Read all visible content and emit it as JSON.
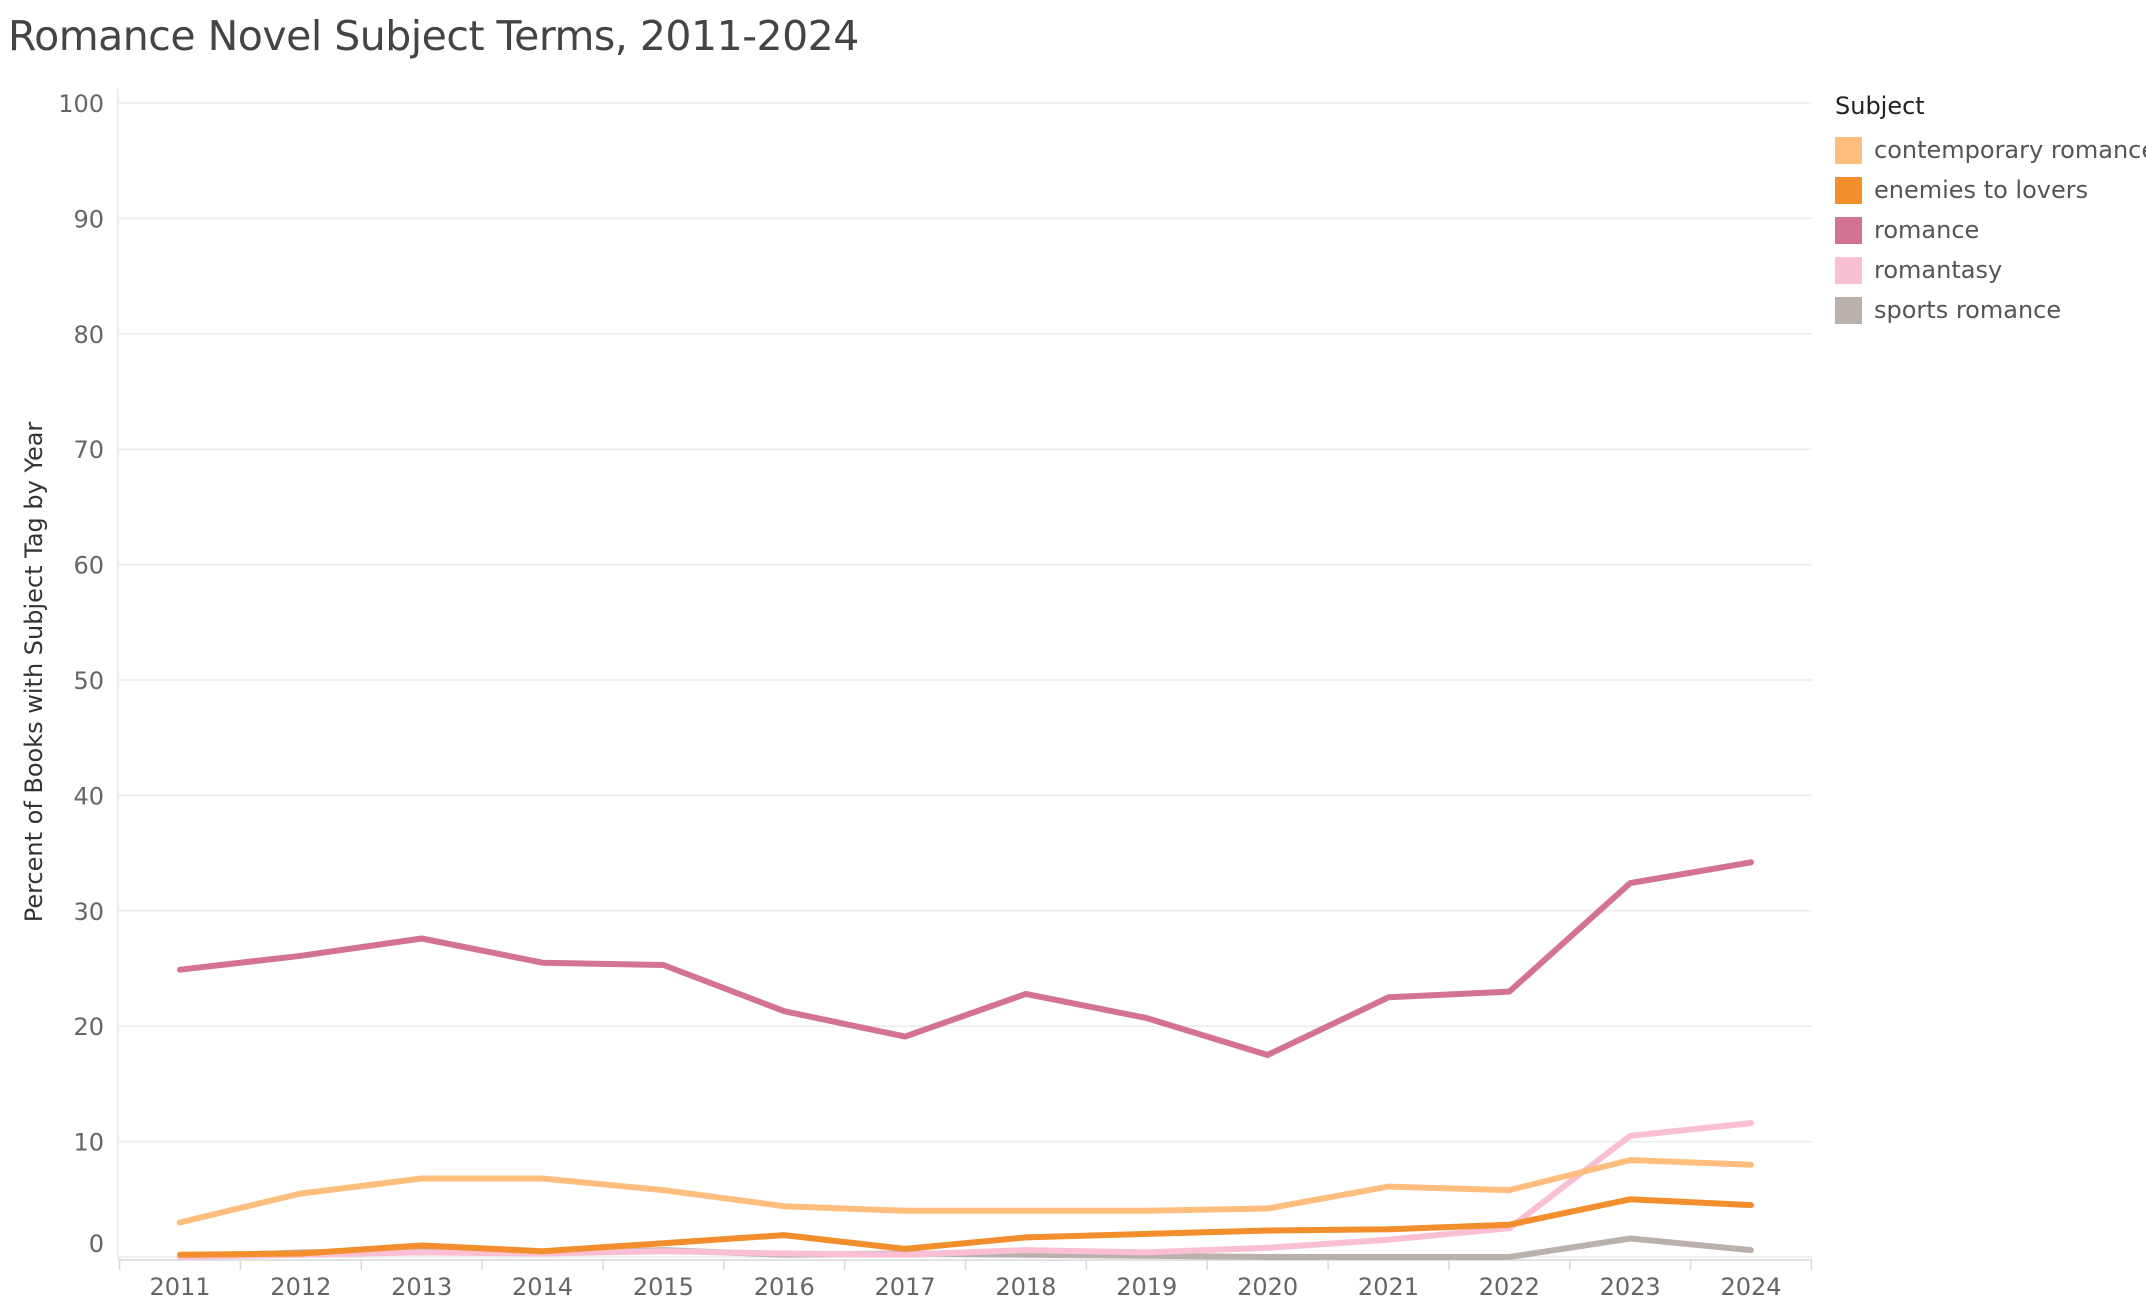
{
  "chart_data": {
    "type": "line",
    "title": "Romance Novel Subject Terms, 2011-2024",
    "ylabel": "Percent of Books with Subject Tag by Year",
    "xlabel": "",
    "x": [
      "2011",
      "2012",
      "2013",
      "2014",
      "2015",
      "2016",
      "2017",
      "2018",
      "2019",
      "2020",
      "2021",
      "2022",
      "2023",
      "2024"
    ],
    "ylim": [
      0,
      100
    ],
    "yticks": [
      0,
      10,
      20,
      30,
      40,
      50,
      60,
      70,
      80,
      90,
      100
    ],
    "grid": "horizontal",
    "legend_title": "Subject",
    "legend_position": "right",
    "series": [
      {
        "name": "contemporary romance",
        "color": "#FFBE7D",
        "values": [
          3.0,
          5.5,
          6.8,
          6.8,
          5.8,
          4.4,
          4.0,
          4.0,
          4.0,
          4.2,
          6.1,
          5.8,
          8.4,
          8.0
        ]
      },
      {
        "name": "enemies to lovers",
        "color": "#F28E2B",
        "values": [
          0.2,
          0.3,
          1.0,
          0.5,
          1.2,
          1.9,
          0.7,
          1.7,
          2.0,
          2.3,
          2.4,
          2.8,
          5.0,
          4.5
        ]
      },
      {
        "name": "romance",
        "color": "#D37295",
        "values": [
          24.9,
          26.1,
          27.6,
          25.5,
          25.3,
          21.3,
          19.1,
          22.8,
          20.7,
          17.5,
          22.5,
          23.0,
          32.4,
          34.2
        ]
      },
      {
        "name": "romantasy",
        "color": "#FABFD2",
        "values": [
          0.0,
          0.2,
          0.4,
          0.3,
          0.5,
          0.3,
          0.2,
          0.6,
          0.4,
          0.8,
          1.5,
          2.5,
          10.5,
          11.6
        ]
      },
      {
        "name": "sports romance",
        "color": "#BAB0AC",
        "values": [
          0.0,
          0.4,
          0.5,
          0.3,
          0.6,
          0.2,
          0.3,
          0.2,
          0.1,
          0.0,
          0.0,
          0.0,
          1.6,
          0.6
        ]
      }
    ]
  }
}
